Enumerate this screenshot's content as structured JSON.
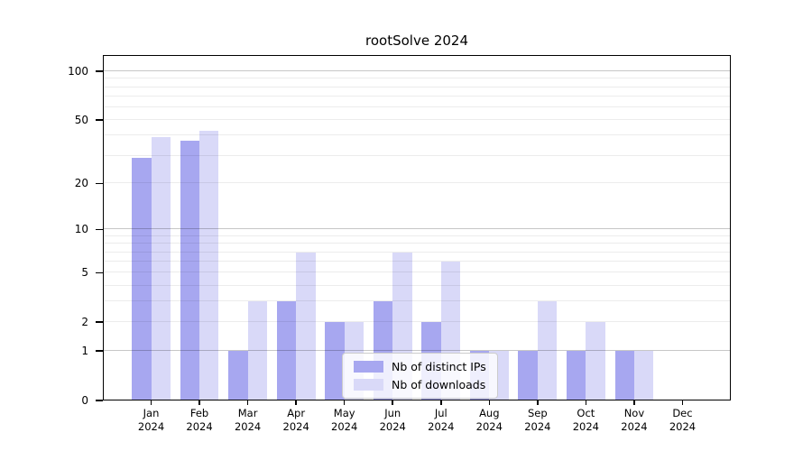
{
  "title": "rootSolve 2024",
  "chart_data": {
    "type": "bar",
    "title": "rootSolve 2024",
    "months": [
      "Jan",
      "Feb",
      "Mar",
      "Apr",
      "May",
      "Jun",
      "Jul",
      "Aug",
      "Sep",
      "Oct",
      "Nov",
      "Dec"
    ],
    "year_label": "2024",
    "series": [
      {
        "name": "Nb of distinct IPs",
        "color": "#a7a7f0",
        "values": [
          29,
          37,
          1,
          3,
          2,
          3,
          2,
          1,
          1,
          1,
          1,
          0
        ]
      },
      {
        "name": "Nb of downloads",
        "color": "#d9d9f8",
        "values": [
          39,
          43,
          3,
          7,
          2,
          7,
          6,
          1,
          3,
          2,
          1,
          0
        ]
      }
    ],
    "xlabel": "",
    "ylabel": "",
    "grid": true,
    "legend_position": "lower center",
    "y_axis": {
      "scale": "log1p",
      "tick_values": [
        0,
        1,
        2,
        5,
        10,
        20,
        50,
        100
      ],
      "max": 126,
      "major_gridlines": [
        1,
        10,
        100
      ],
      "minor_gridlines": [
        2,
        3,
        4,
        5,
        6,
        7,
        8,
        9,
        20,
        30,
        40,
        50,
        60,
        70,
        80,
        90
      ]
    }
  },
  "colors": {
    "bar_distinct_ips": "#a7a7f0",
    "bar_downloads": "#d9d9f8",
    "spine": "#000000",
    "major_grid": "#c9c9c9",
    "minor_grid": "#ececec",
    "legend_border": "#cccccc"
  }
}
